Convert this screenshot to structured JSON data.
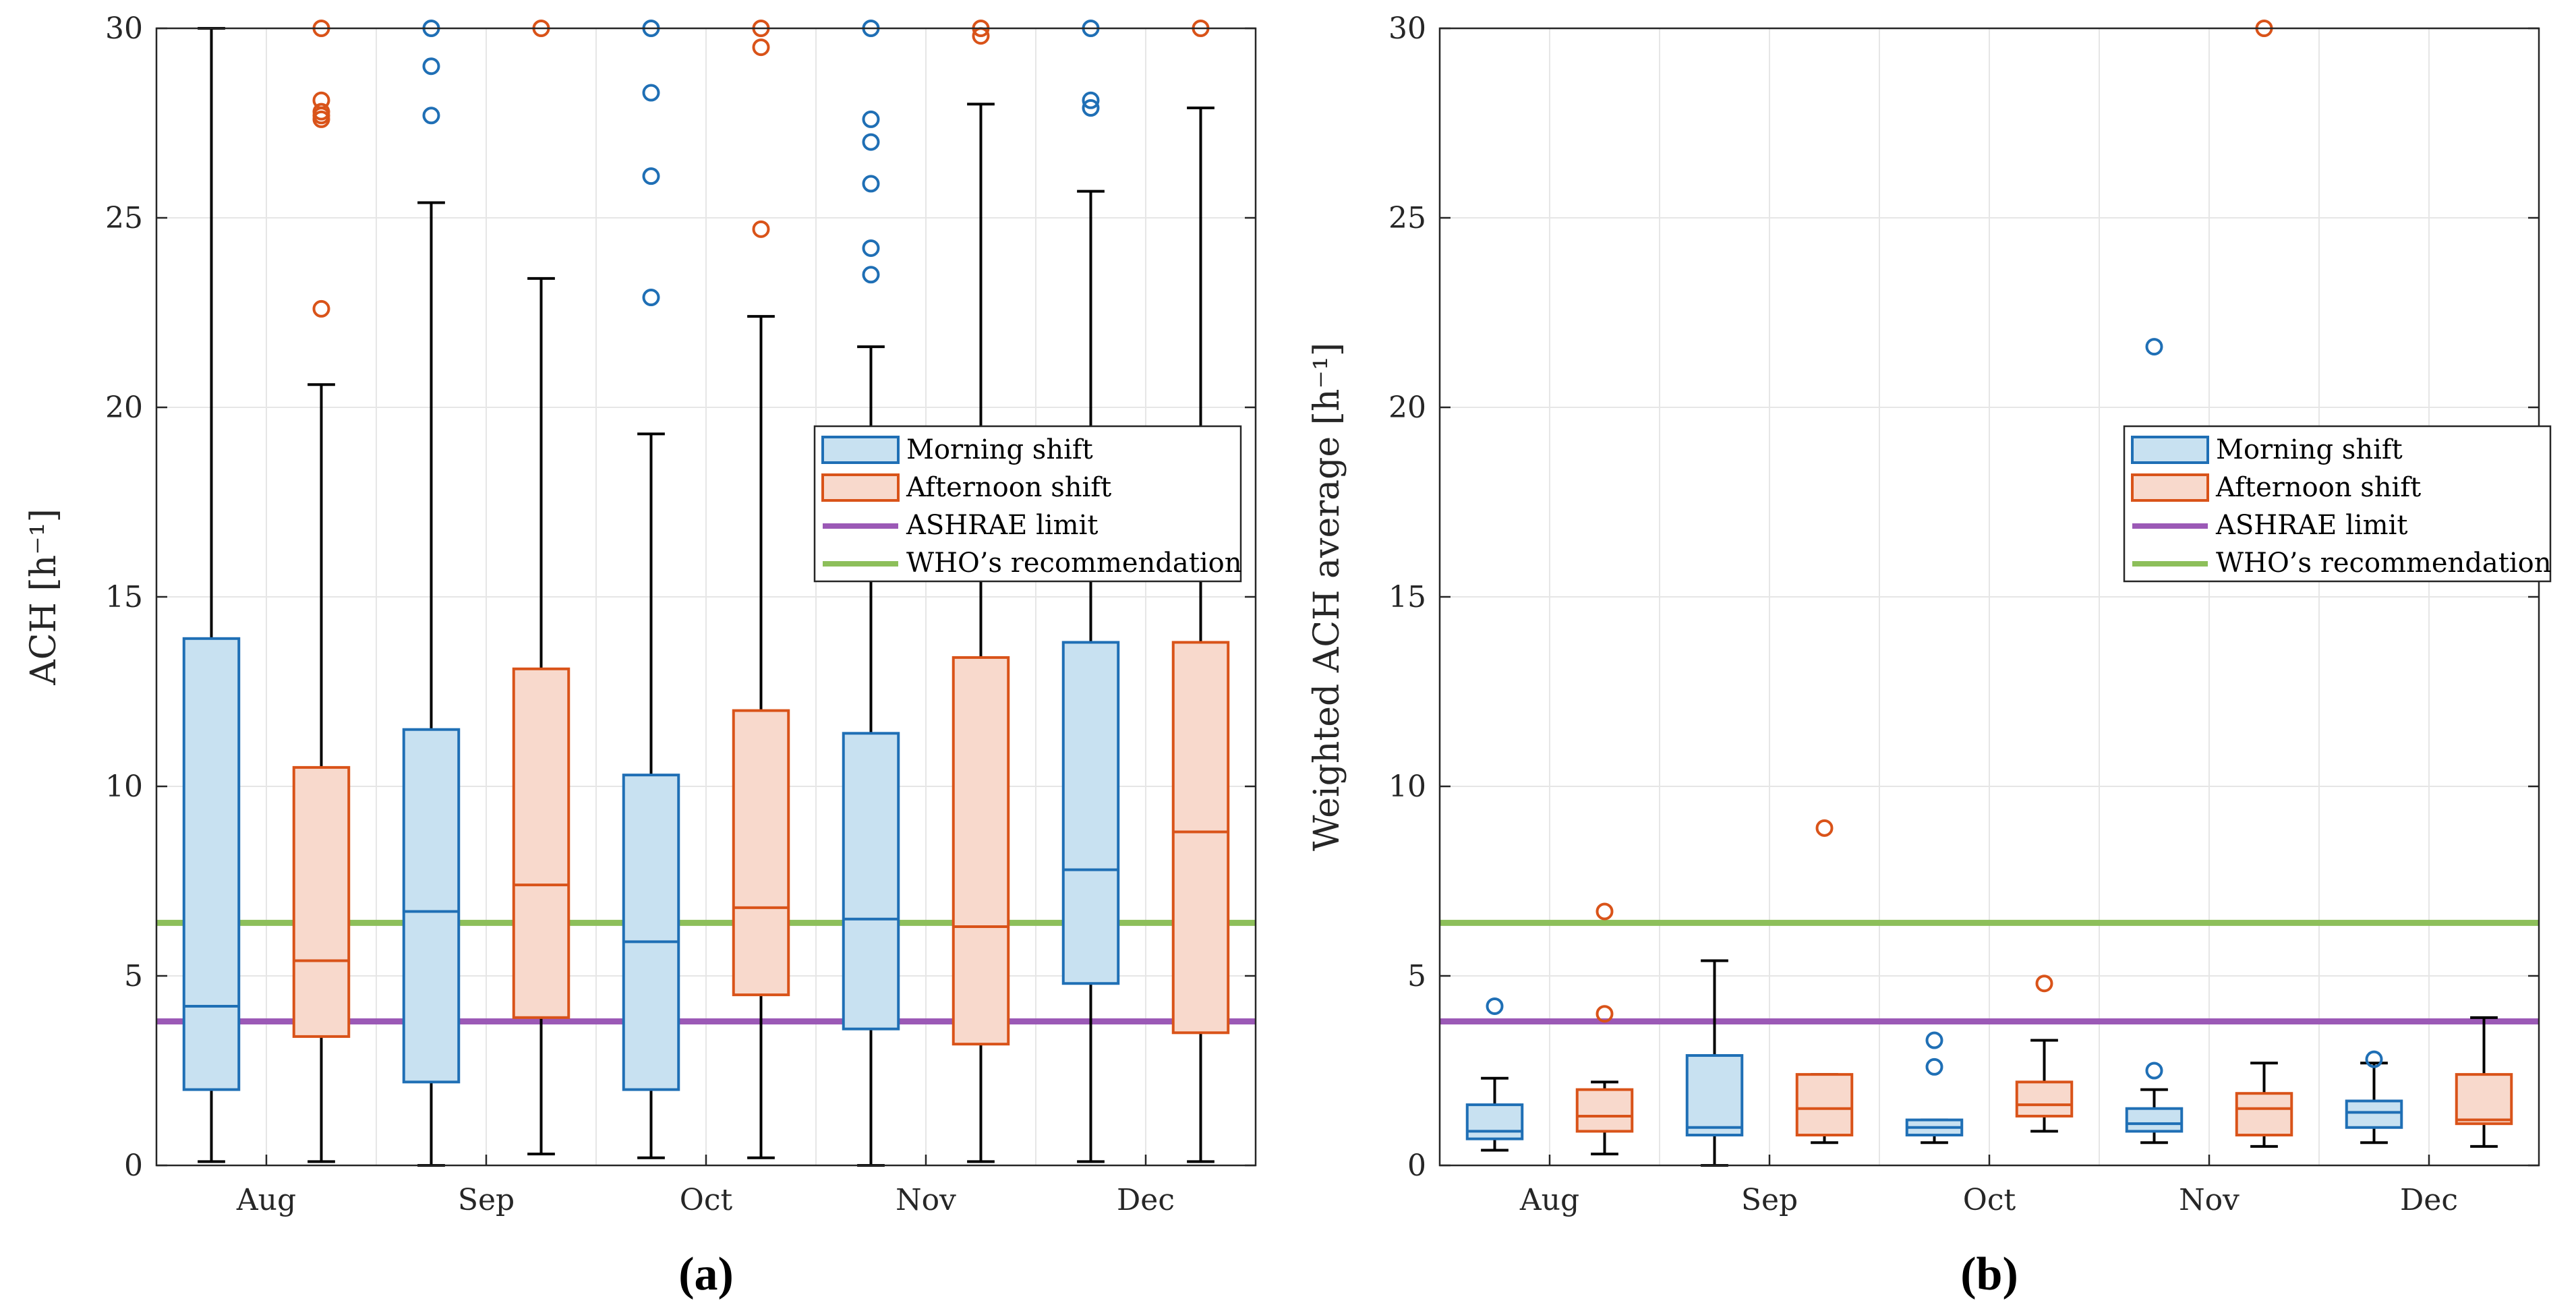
{
  "chart_data": [
    {
      "type": "boxplot",
      "panel_label": "(a)",
      "ylabel": "ACH [h⁻¹]",
      "xlabel": "",
      "ylim": [
        0,
        30
      ],
      "yticks": [
        0,
        5,
        10,
        15,
        20,
        25,
        30
      ],
      "grid": true,
      "categories": [
        "Aug",
        "Sep",
        "Oct",
        "Nov",
        "Dec"
      ],
      "legend_position": "center-right",
      "reference_lines": [
        {
          "name": "ASHRAE limit",
          "value": 3.8,
          "color": "#9B59B6"
        },
        {
          "name": "WHO’s recommendation",
          "value": 6.4,
          "color": "#8DBF5A"
        }
      ],
      "series": [
        {
          "name": "Morning shift",
          "color": "#1F6FB5",
          "fill": "#C8E1F1",
          "boxes": [
            {
              "min": 0.1,
              "q1": 2.0,
              "median": 4.2,
              "q3": 13.9,
              "max": 30.0,
              "outliers": []
            },
            {
              "min": 0.0,
              "q1": 2.2,
              "median": 6.7,
              "q3": 11.5,
              "max": 25.4,
              "outliers": [
                27.7,
                29.0,
                30.0
              ]
            },
            {
              "min": 0.2,
              "q1": 2.0,
              "median": 5.9,
              "q3": 10.3,
              "max": 19.3,
              "outliers": [
                22.9,
                26.1,
                28.3,
                30.0
              ]
            },
            {
              "min": 0.0,
              "q1": 3.6,
              "median": 6.5,
              "q3": 11.4,
              "max": 21.6,
              "outliers": [
                23.5,
                24.2,
                25.9,
                27.0,
                27.6,
                30.0
              ]
            },
            {
              "min": 0.1,
              "q1": 4.8,
              "median": 7.8,
              "q3": 13.8,
              "max": 25.7,
              "outliers": [
                27.9,
                28.1,
                30.0
              ]
            }
          ]
        },
        {
          "name": "Afternoon shift",
          "color": "#D95319",
          "fill": "#F8D9CC",
          "boxes": [
            {
              "min": 0.1,
              "q1": 3.4,
              "median": 5.4,
              "q3": 10.5,
              "max": 20.6,
              "outliers": [
                22.6,
                27.6,
                27.7,
                27.8,
                28.1,
                30.0
              ]
            },
            {
              "min": 0.3,
              "q1": 3.9,
              "median": 7.4,
              "q3": 13.1,
              "max": 23.4,
              "outliers": [
                30.0
              ]
            },
            {
              "min": 0.2,
              "q1": 4.5,
              "median": 6.8,
              "q3": 12.0,
              "max": 22.4,
              "outliers": [
                24.7,
                29.5,
                30.0
              ]
            },
            {
              "min": 0.1,
              "q1": 3.2,
              "median": 6.3,
              "q3": 13.4,
              "max": 28.0,
              "outliers": [
                29.8,
                30.0
              ]
            },
            {
              "min": 0.1,
              "q1": 3.5,
              "median": 8.8,
              "q3": 13.8,
              "max": 27.9,
              "outliers": [
                30.0
              ]
            }
          ]
        }
      ]
    },
    {
      "type": "boxplot",
      "panel_label": "(b)",
      "ylabel": "Weighted ACH average [h⁻¹]",
      "xlabel": "",
      "ylim": [
        0,
        30
      ],
      "yticks": [
        0,
        5,
        10,
        15,
        20,
        25,
        30
      ],
      "grid": true,
      "categories": [
        "Aug",
        "Sep",
        "Oct",
        "Nov",
        "Dec"
      ],
      "legend_position": "center-right",
      "reference_lines": [
        {
          "name": "ASHRAE limit",
          "value": 3.8,
          "color": "#9B59B6"
        },
        {
          "name": "WHO’s recommendation",
          "value": 6.4,
          "color": "#8DBF5A"
        }
      ],
      "series": [
        {
          "name": "Morning shift",
          "color": "#1F6FB5",
          "fill": "#C8E1F1",
          "boxes": [
            {
              "min": 0.4,
              "q1": 0.7,
              "median": 0.9,
              "q3": 1.6,
              "max": 2.3,
              "outliers": [
                4.2
              ]
            },
            {
              "min": 0.0,
              "q1": 0.8,
              "median": 1.0,
              "q3": 2.9,
              "max": 5.4,
              "outliers": []
            },
            {
              "min": 0.6,
              "q1": 0.8,
              "median": 1.0,
              "q3": 1.2,
              "max": 1.2,
              "outliers": [
                2.6,
                3.3
              ]
            },
            {
              "min": 0.6,
              "q1": 0.9,
              "median": 1.1,
              "q3": 1.5,
              "max": 2.0,
              "outliers": [
                2.5,
                21.6
              ]
            },
            {
              "min": 0.6,
              "q1": 1.0,
              "median": 1.4,
              "q3": 1.7,
              "max": 2.7,
              "outliers": [
                2.8
              ]
            }
          ]
        },
        {
          "name": "Afternoon shift",
          "color": "#D95319",
          "fill": "#F8D9CC",
          "boxes": [
            {
              "min": 0.3,
              "q1": 0.9,
              "median": 1.3,
              "q3": 2.0,
              "max": 2.2,
              "outliers": [
                4.0,
                6.7
              ]
            },
            {
              "min": 0.6,
              "q1": 0.8,
              "median": 1.5,
              "q3": 2.4,
              "max": 2.4,
              "outliers": [
                8.9
              ]
            },
            {
              "min": 0.9,
              "q1": 1.3,
              "median": 1.6,
              "q3": 2.2,
              "max": 3.3,
              "outliers": [
                4.8
              ]
            },
            {
              "min": 0.5,
              "q1": 0.8,
              "median": 1.5,
              "q3": 1.9,
              "max": 2.7,
              "outliers": [
                30.0
              ]
            },
            {
              "min": 0.5,
              "q1": 1.1,
              "median": 1.2,
              "q3": 2.4,
              "max": 3.9,
              "outliers": []
            }
          ]
        }
      ]
    }
  ]
}
